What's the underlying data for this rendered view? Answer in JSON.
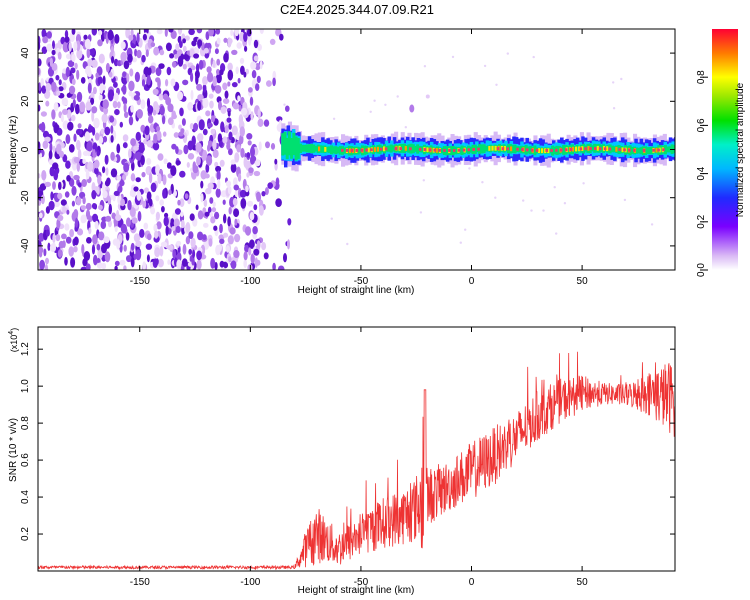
{
  "chart_data": [
    {
      "type": "heatmap",
      "title": "C2E4.2025.344.07.09.R21",
      "xlabel": "Height of straight line (km)",
      "ylabel": "Frequency (Hz)",
      "xlim": [
        -196,
        92
      ],
      "ylim": [
        -50,
        50
      ],
      "xticks": [
        -150,
        -100,
        -50,
        0,
        50
      ],
      "yticks": [
        -40,
        -20,
        0,
        20,
        40
      ],
      "colorbar": {
        "label": "Normalized spectral amplitude",
        "range": [
          0,
          1
        ],
        "ticks": [
          "0.0",
          "0.2",
          "0.4",
          "0.6",
          "0.8"
        ]
      },
      "description_regions": {
        "noise_region_x": [
          -196,
          -86
        ],
        "signal_band_x": [
          -86,
          92
        ],
        "signal_center_hz": 0,
        "isolated_blob": {
          "x": -27,
          "y": 17
        }
      }
    },
    {
      "type": "line",
      "title": "",
      "xlabel": "Height of straight line (km)",
      "ylabel": "SNR (10 * v/v)",
      "y_exponent_label": "(x10",
      "y_exponent_power": "4",
      "y_exponent_close": ")",
      "xlim": [
        -196,
        92
      ],
      "ylim": [
        0,
        1.32
      ],
      "xticks": [
        -150,
        -100,
        -50,
        0,
        50
      ],
      "yticks": [
        "0.2",
        "0.4",
        "0.6",
        "0.8",
        "1.0",
        "1.2"
      ],
      "series": [
        {
          "name": "SNR",
          "color": "#ee3333",
          "envelope_x": [
            -196,
            -80,
            -75,
            -70,
            -65,
            -60,
            -50,
            -40,
            -30,
            -25,
            -22,
            -20,
            -10,
            0,
            10,
            20,
            30,
            40,
            50,
            60,
            70,
            80,
            92
          ],
          "envelope_mean": [
            0.02,
            0.02,
            0.12,
            0.2,
            0.16,
            0.12,
            0.2,
            0.26,
            0.3,
            0.34,
            0.38,
            0.4,
            0.46,
            0.54,
            0.62,
            0.72,
            0.84,
            0.92,
            0.96,
            0.96,
            0.95,
            0.96,
            0.94
          ],
          "envelope_amp": [
            0.008,
            0.008,
            0.1,
            0.16,
            0.12,
            0.1,
            0.12,
            0.14,
            0.16,
            0.18,
            0.3,
            0.16,
            0.14,
            0.16,
            0.16,
            0.14,
            0.14,
            0.12,
            0.1,
            0.06,
            0.06,
            0.12,
            0.22
          ]
        }
      ]
    }
  ],
  "colors": {
    "noise_scatter": "#6a1fd6",
    "line": "#ee3333",
    "ridge": "#e83a6a"
  }
}
